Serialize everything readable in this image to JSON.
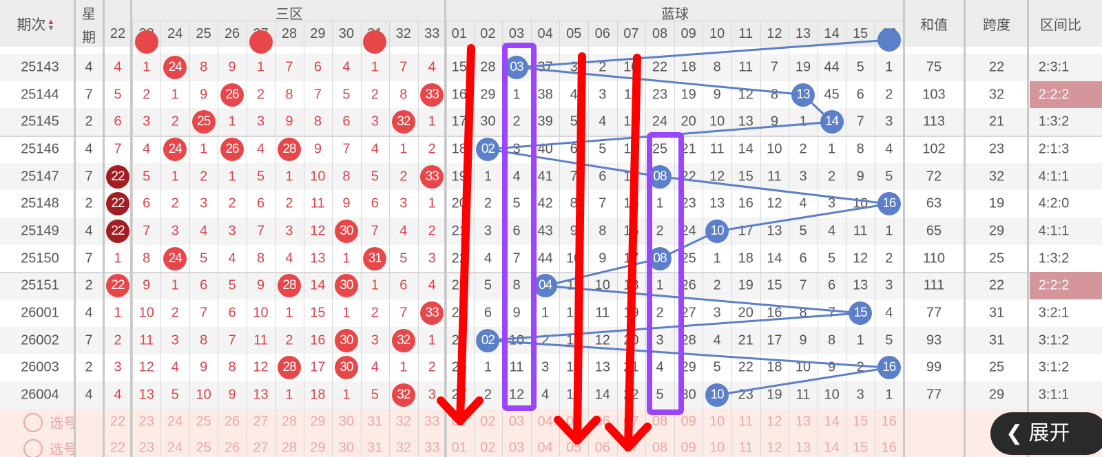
{
  "header": {
    "period_label": "期次",
    "sort_icon": "sort-up-down-icon",
    "weekday_label_1": "星",
    "weekday_label_2": "期",
    "zone3_label": "三区",
    "blue_label": "蓝球",
    "sum_label": "和值",
    "span_label": "跨度",
    "ratio_label": "区间比",
    "red_numbers": [
      "22",
      "23",
      "24",
      "25",
      "26",
      "27",
      "28",
      "29",
      "30",
      "31",
      "32",
      "33"
    ],
    "blue_numbers": [
      "01",
      "02",
      "03",
      "04",
      "05",
      "06",
      "07",
      "08",
      "09",
      "10",
      "11",
      "12",
      "13",
      "14",
      "15",
      "16"
    ]
  },
  "colors": {
    "red_ball": "#e8474a",
    "repeat_red_ball": "#a11f22",
    "blue_ball": "#5b7fc8",
    "ratio_highlight": "#d4969b",
    "annotation_purple": "#9b45ff",
    "annotation_red": "#ff0000"
  },
  "partial_top_row": {
    "red_hits": [
      "23",
      "27",
      "31"
    ],
    "blue_hit": "16"
  },
  "rows": [
    {
      "period": "25143",
      "week": "4",
      "red": [
        "4",
        "1",
        "24",
        "8",
        "9",
        "1",
        "7",
        "6",
        "4",
        "1",
        "7",
        "4"
      ],
      "red_hits": [
        2
      ],
      "repeat_hits": [],
      "blue": [
        "15",
        "28",
        "03",
        "37",
        "3",
        "2",
        "10",
        "22",
        "18",
        "8",
        "11",
        "7",
        "19",
        "44",
        "5",
        "1"
      ],
      "blue_hit": 2,
      "sum": "75",
      "span": "22",
      "ratio": "2:3:1",
      "ratio_hl": false
    },
    {
      "period": "25144",
      "week": "7",
      "red": [
        "5",
        "2",
        "1",
        "9",
        "26",
        "2",
        "8",
        "7",
        "5",
        "2",
        "8",
        "33"
      ],
      "red_hits": [
        4,
        11
      ],
      "repeat_hits": [],
      "blue": [
        "16",
        "29",
        "1",
        "38",
        "4",
        "3",
        "11",
        "23",
        "19",
        "9",
        "12",
        "8",
        "13",
        "45",
        "6",
        "2"
      ],
      "blue_hit": 12,
      "sum": "103",
      "span": "32",
      "ratio": "2:2:2",
      "ratio_hl": true
    },
    {
      "period": "25145",
      "week": "2",
      "red": [
        "6",
        "3",
        "2",
        "25",
        "1",
        "3",
        "9",
        "8",
        "6",
        "3",
        "32",
        "1"
      ],
      "red_hits": [
        3,
        10
      ],
      "repeat_hits": [],
      "blue": [
        "17",
        "30",
        "2",
        "39",
        "5",
        "4",
        "12",
        "24",
        "20",
        "10",
        "13",
        "9",
        "1",
        "14",
        "7",
        "3"
      ],
      "blue_hit": 13,
      "sum": "113",
      "span": "21",
      "ratio": "1:3:2",
      "ratio_hl": false
    },
    {
      "period": "25146",
      "week": "4",
      "red": [
        "7",
        "4",
        "24",
        "1",
        "26",
        "4",
        "28",
        "9",
        "7",
        "4",
        "1",
        "2"
      ],
      "red_hits": [
        2,
        4,
        6
      ],
      "repeat_hits": [],
      "blue": [
        "18",
        "02",
        "3",
        "40",
        "6",
        "5",
        "13",
        "25",
        "21",
        "11",
        "14",
        "10",
        "2",
        "1",
        "8",
        "4"
      ],
      "blue_hit": 1,
      "sum": "102",
      "span": "23",
      "ratio": "2:1:3",
      "ratio_hl": false
    },
    {
      "period": "25147",
      "week": "7",
      "red": [
        "22",
        "5",
        "1",
        "2",
        "1",
        "5",
        "1",
        "10",
        "8",
        "5",
        "2",
        "33"
      ],
      "red_hits": [
        11
      ],
      "repeat_hits": [
        0
      ],
      "blue": [
        "19",
        "1",
        "4",
        "41",
        "7",
        "6",
        "14",
        "08",
        "22",
        "12",
        "15",
        "11",
        "3",
        "2",
        "9",
        "5"
      ],
      "blue_hit": 7,
      "sum": "72",
      "span": "32",
      "ratio": "4:1:1",
      "ratio_hl": false
    },
    {
      "period": "25148",
      "week": "2",
      "red": [
        "22",
        "6",
        "2",
        "3",
        "2",
        "6",
        "2",
        "11",
        "9",
        "6",
        "3",
        "1"
      ],
      "red_hits": [],
      "repeat_hits": [
        0
      ],
      "blue": [
        "20",
        "2",
        "5",
        "42",
        "8",
        "7",
        "15",
        "1",
        "23",
        "13",
        "16",
        "12",
        "4",
        "3",
        "10",
        "16"
      ],
      "blue_hit": 15,
      "sum": "63",
      "span": "19",
      "ratio": "4:2:0",
      "ratio_hl": false
    },
    {
      "period": "25149",
      "week": "4",
      "red": [
        "22",
        "7",
        "3",
        "4",
        "3",
        "7",
        "3",
        "12",
        "30",
        "7",
        "4",
        "2"
      ],
      "red_hits": [
        8
      ],
      "repeat_hits": [
        0
      ],
      "blue": [
        "21",
        "3",
        "6",
        "43",
        "9",
        "8",
        "16",
        "2",
        "24",
        "10",
        "17",
        "13",
        "5",
        "4",
        "11",
        "1"
      ],
      "blue_hit": 9,
      "sum": "65",
      "span": "29",
      "ratio": "4:1:1",
      "ratio_hl": false
    },
    {
      "period": "25150",
      "week": "7",
      "red": [
        "1",
        "8",
        "24",
        "5",
        "4",
        "8",
        "4",
        "13",
        "1",
        "31",
        "5",
        "3"
      ],
      "red_hits": [
        2,
        9
      ],
      "repeat_hits": [],
      "blue": [
        "22",
        "4",
        "7",
        "44",
        "10",
        "9",
        "17",
        "08",
        "25",
        "1",
        "18",
        "14",
        "6",
        "5",
        "12",
        "2"
      ],
      "blue_hit": 7,
      "sum": "110",
      "span": "25",
      "ratio": "1:3:2",
      "ratio_hl": false
    },
    {
      "period": "25151",
      "week": "2",
      "red": [
        "22",
        "9",
        "1",
        "6",
        "5",
        "9",
        "28",
        "14",
        "30",
        "1",
        "6",
        "4"
      ],
      "red_hits": [
        0,
        6,
        8
      ],
      "repeat_hits": [],
      "blue": [
        "23",
        "5",
        "8",
        "04",
        "11",
        "10",
        "18",
        "1",
        "26",
        "2",
        "19",
        "15",
        "7",
        "6",
        "13",
        "3"
      ],
      "blue_hit": 3,
      "sum": "111",
      "span": "22",
      "ratio": "2:2:2",
      "ratio_hl": true
    },
    {
      "period": "26001",
      "week": "4",
      "red": [
        "1",
        "10",
        "2",
        "7",
        "6",
        "10",
        "1",
        "15",
        "1",
        "2",
        "7",
        "33"
      ],
      "red_hits": [
        11
      ],
      "repeat_hits": [],
      "blue": [
        "24",
        "6",
        "9",
        "1",
        "12",
        "11",
        "19",
        "2",
        "27",
        "3",
        "20",
        "16",
        "8",
        "7",
        "15",
        "4"
      ],
      "blue_hit": 14,
      "sum": "77",
      "span": "31",
      "ratio": "3:2:1",
      "ratio_hl": false
    },
    {
      "period": "26002",
      "week": "7",
      "red": [
        "2",
        "11",
        "3",
        "8",
        "7",
        "11",
        "2",
        "16",
        "30",
        "3",
        "32",
        "1"
      ],
      "red_hits": [
        8,
        10
      ],
      "repeat_hits": [],
      "blue": [
        "25",
        "02",
        "10",
        "2",
        "13",
        "12",
        "20",
        "3",
        "28",
        "4",
        "21",
        "17",
        "9",
        "8",
        "1",
        "5"
      ],
      "blue_hit": 1,
      "sum": "93",
      "span": "31",
      "ratio": "3:1:2",
      "ratio_hl": false
    },
    {
      "period": "26003",
      "week": "2",
      "red": [
        "3",
        "12",
        "4",
        "9",
        "8",
        "12",
        "28",
        "17",
        "30",
        "4",
        "1",
        "2"
      ],
      "red_hits": [
        6,
        8
      ],
      "repeat_hits": [],
      "blue": [
        "26",
        "1",
        "11",
        "3",
        "14",
        "13",
        "21",
        "4",
        "29",
        "5",
        "22",
        "18",
        "10",
        "9",
        "2",
        "16"
      ],
      "blue_hit": 15,
      "sum": "99",
      "span": "25",
      "ratio": "3:1:2",
      "ratio_hl": false
    },
    {
      "period": "26004",
      "week": "4",
      "red": [
        "4",
        "13",
        "5",
        "10",
        "9",
        "13",
        "1",
        "18",
        "1",
        "5",
        "32",
        "3"
      ],
      "red_hits": [
        10
      ],
      "repeat_hits": [],
      "blue": [
        "27",
        "2",
        "12",
        "4",
        "15",
        "14",
        "22",
        "5",
        "30",
        "10",
        "23",
        "19",
        "11",
        "10",
        "3",
        "1"
      ],
      "blue_hit": 9,
      "sum": "77",
      "span": "29",
      "ratio": "3:1:1",
      "ratio_hl": false
    }
  ],
  "select_rows": [
    {
      "label": "选号"
    },
    {
      "label": "选号"
    }
  ],
  "expand_button": {
    "label": "展开",
    "icon": "chevron-left-icon"
  }
}
